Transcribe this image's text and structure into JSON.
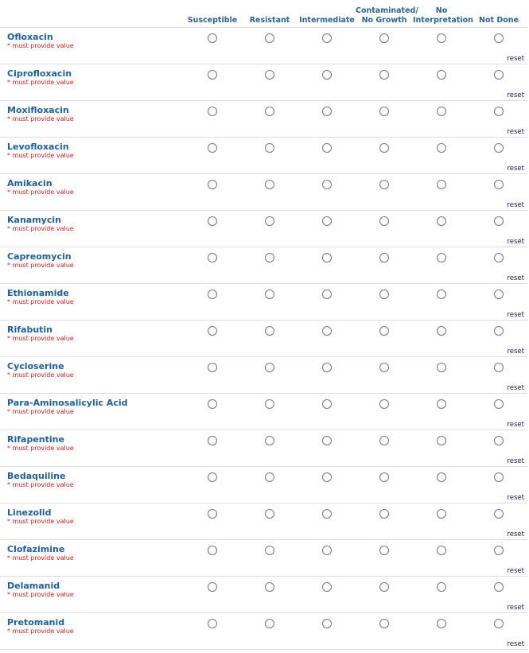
{
  "columns": [
    "Susceptible",
    "Resistant",
    "Intermediate",
    "Contaminated/ No Growth",
    "No Interpretation",
    "Not Done"
  ],
  "required_text": "* must provide value",
  "reset_label": "reset",
  "rows": [
    "Ofloxacin",
    "Ciprofloxacin",
    "Moxifloxacin",
    "Levofloxacin",
    "Amikacin",
    "Kanamycin",
    "Capreomycin",
    "Ethionamide",
    "Rifabutin",
    "Cycloserine",
    "Para-Aminosalicylic Acid",
    "Rifapentine",
    "Bedaquiline",
    "Linezolid",
    "Clofazimine",
    "Delamanid",
    "Pretomanid"
  ]
}
